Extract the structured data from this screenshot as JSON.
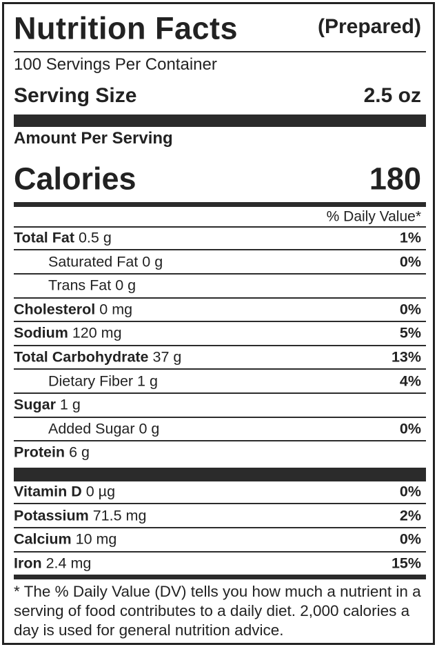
{
  "header": {
    "title": "Nutrition Facts",
    "subtitle": "(Prepared)"
  },
  "servings": "100 Servings Per Container",
  "serving_size": {
    "label": "Serving Size",
    "value": "2.5 oz"
  },
  "amount_per_serving": "Amount Per Serving",
  "calories": {
    "label": "Calories",
    "value": "180"
  },
  "daily_value_header": "% Daily Value*",
  "nutrients": [
    {
      "name": "Total Fat",
      "amount": "0.5 g",
      "dv": "1%"
    },
    {
      "name": "Saturated Fat",
      "amount": "0 g",
      "dv": "0%",
      "indent": true
    },
    {
      "name": "Trans Fat",
      "amount": "0 g",
      "indent": true
    },
    {
      "name": "Cholesterol",
      "amount": "0 mg",
      "dv": "0%"
    },
    {
      "name": "Sodium",
      "amount": "120 mg",
      "dv": "5%"
    },
    {
      "name": "Total Carbohydrate",
      "amount": "37 g",
      "dv": "13%"
    },
    {
      "name": "Dietary Fiber",
      "amount": "1 g",
      "dv": "4%",
      "indent": true
    },
    {
      "name": "Sugar",
      "amount": "1 g"
    },
    {
      "name": "Added Sugar",
      "amount": "0 g",
      "dv": "0%",
      "indent": true
    },
    {
      "name": "Protein",
      "amount": "6 g"
    }
  ],
  "vitamins": [
    {
      "name": "Vitamin D",
      "amount": "0 µg",
      "dv": "0%"
    },
    {
      "name": "Potassium",
      "amount": "71.5 mg",
      "dv": "2%"
    },
    {
      "name": "Calcium",
      "amount": "10 mg",
      "dv": "0%"
    },
    {
      "name": "Iron",
      "amount": "2.4 mg",
      "dv": "15%"
    }
  ],
  "footnote": "* The % Daily Value (DV) tells you how much a nutrient in a serving of food contributes to a daily diet. 2,000 calories a day is used for general nutrition advice."
}
